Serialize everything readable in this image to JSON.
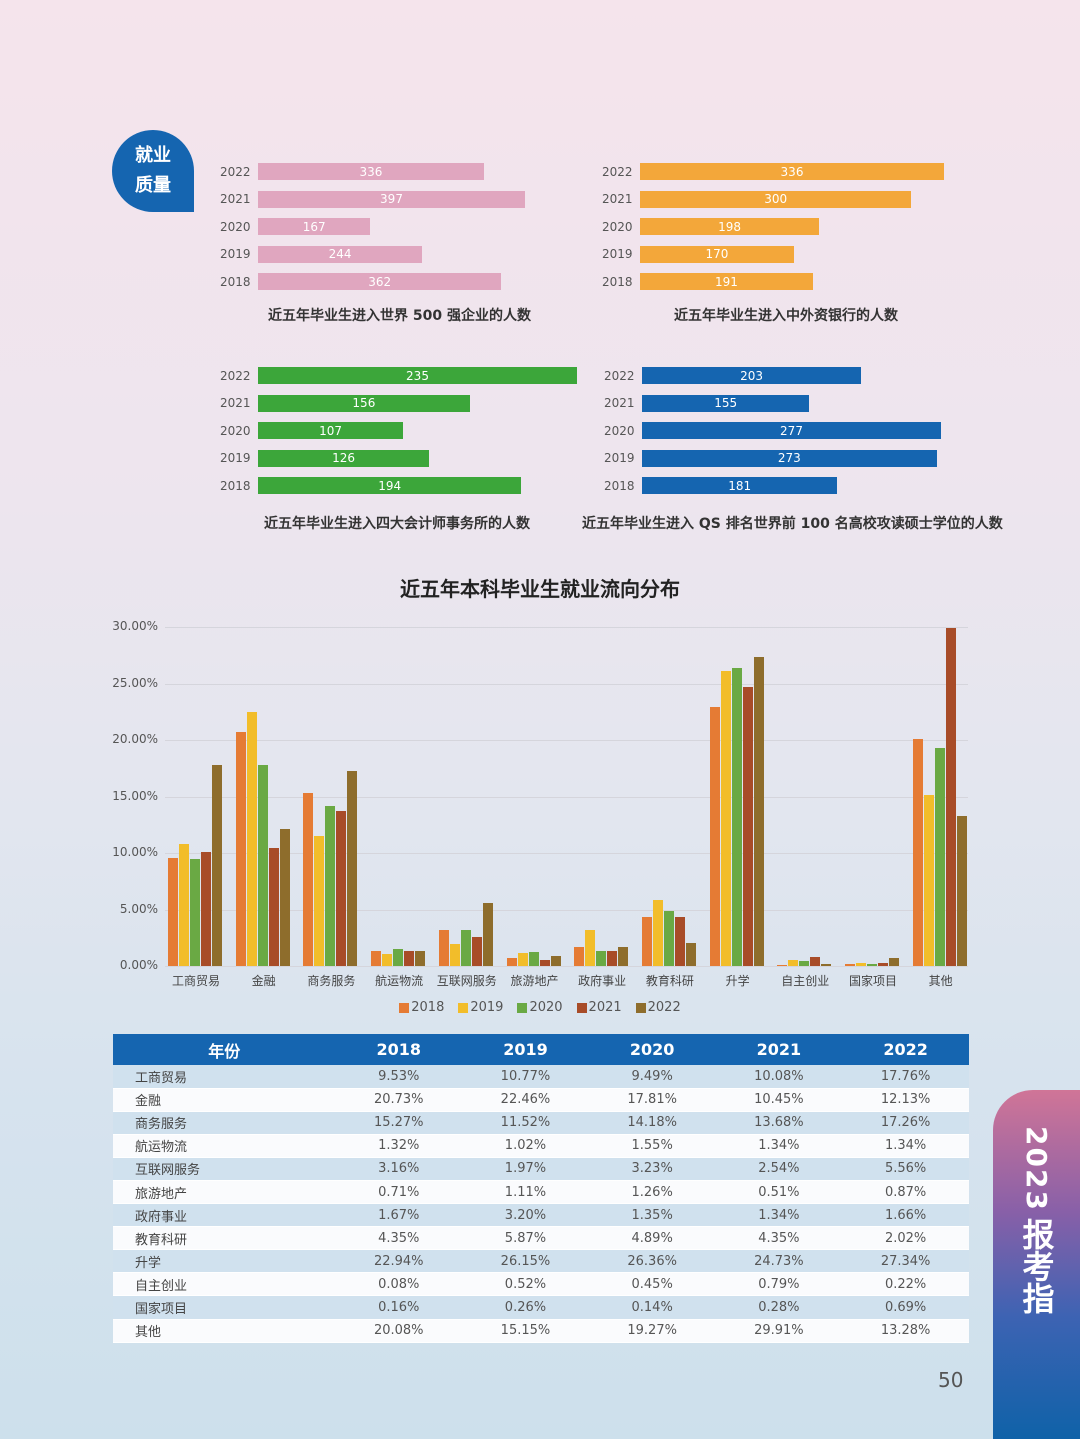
{
  "section_badge": {
    "line1": "就业",
    "line2": "质量"
  },
  "chart_data": [
    {
      "type": "bar",
      "orientation": "horizontal",
      "title": "近五年毕业生进入世界 500 强企业的人数",
      "categories": [
        "2022",
        "2021",
        "2020",
        "2019",
        "2018"
      ],
      "values": [
        336,
        397,
        167,
        244,
        362
      ],
      "color": "#e0a6bf"
    },
    {
      "type": "bar",
      "orientation": "horizontal",
      "title": "近五年毕业生进入中外资银行的人数",
      "categories": [
        "2022",
        "2021",
        "2020",
        "2019",
        "2018"
      ],
      "values": [
        336,
        300,
        198,
        170,
        191
      ],
      "color": "#f3a73a"
    },
    {
      "type": "bar",
      "orientation": "horizontal",
      "title": "近五年毕业生进入四大会计师事务所的人数",
      "categories": [
        "2022",
        "2021",
        "2020",
        "2019",
        "2018"
      ],
      "values": [
        235,
        156,
        107,
        126,
        194
      ],
      "color": "#3ca63a"
    },
    {
      "type": "bar",
      "orientation": "horizontal",
      "title": "近五年毕业生进入 QS 排名世界前 100 名高校攻读硕士学位的人数",
      "categories": [
        "2022",
        "2021",
        "2020",
        "2019",
        "2018"
      ],
      "values": [
        203,
        155,
        277,
        273,
        181
      ],
      "color": "#1565b0"
    },
    {
      "type": "bar",
      "title": "近五年本科毕业生就业流向分布",
      "xlabel": "",
      "ylabel": "",
      "ylim": [
        0,
        30
      ],
      "yticks": [
        "0.00%",
        "5.00%",
        "10.00%",
        "15.00%",
        "20.00%",
        "25.00%",
        "30.00%"
      ],
      "grid": true,
      "legend_position": "bottom",
      "categories": [
        "工商贸易",
        "金融",
        "商务服务",
        "航运物流",
        "互联网服务",
        "旅游地产",
        "政府事业",
        "教育科研",
        "升学",
        "自主创业",
        "国家项目",
        "其他"
      ],
      "series": [
        {
          "name": "2018",
          "color": "#e57b34",
          "values": [
            9.53,
            20.73,
            15.27,
            1.32,
            3.16,
            0.71,
            1.67,
            4.35,
            22.94,
            0.08,
            0.16,
            20.08
          ]
        },
        {
          "name": "2019",
          "color": "#f2bd2a",
          "values": [
            10.77,
            22.46,
            11.52,
            1.02,
            1.97,
            1.11,
            3.2,
            5.87,
            26.15,
            0.52,
            0.26,
            15.15
          ]
        },
        {
          "name": "2020",
          "color": "#6aa944",
          "values": [
            9.49,
            17.81,
            14.18,
            1.55,
            3.23,
            1.26,
            1.35,
            4.89,
            26.36,
            0.45,
            0.14,
            19.27
          ]
        },
        {
          "name": "2021",
          "color": "#a84c28",
          "values": [
            10.08,
            10.45,
            13.68,
            1.34,
            2.54,
            0.51,
            1.34,
            4.35,
            24.73,
            0.79,
            0.28,
            29.91
          ]
        },
        {
          "name": "2022",
          "color": "#8e6d2c",
          "values": [
            17.76,
            12.13,
            17.26,
            1.34,
            5.56,
            0.87,
            1.66,
            2.02,
            27.34,
            0.22,
            0.69,
            13.28
          ]
        }
      ]
    }
  ],
  "table": {
    "headers": [
      "年份",
      "2018",
      "2019",
      "2020",
      "2021",
      "2022"
    ],
    "rows": [
      [
        "工商贸易",
        "9.53%",
        "10.77%",
        "9.49%",
        "10.08%",
        "17.76%"
      ],
      [
        "金融",
        "20.73%",
        "22.46%",
        "17.81%",
        "10.45%",
        "12.13%"
      ],
      [
        "商务服务",
        "15.27%",
        "11.52%",
        "14.18%",
        "13.68%",
        "17.26%"
      ],
      [
        "航运物流",
        "1.32%",
        "1.02%",
        "1.55%",
        "1.34%",
        "1.34%"
      ],
      [
        "互联网服务",
        "3.16%",
        "1.97%",
        "3.23%",
        "2.54%",
        "5.56%"
      ],
      [
        "旅游地产",
        "0.71%",
        "1.11%",
        "1.26%",
        "0.51%",
        "0.87%"
      ],
      [
        "政府事业",
        "1.67%",
        "3.20%",
        "1.35%",
        "1.34%",
        "1.66%"
      ],
      [
        "教育科研",
        "4.35%",
        "5.87%",
        "4.89%",
        "4.35%",
        "2.02%"
      ],
      [
        "升学",
        "22.94%",
        "26.15%",
        "26.36%",
        "24.73%",
        "27.34%"
      ],
      [
        "自主创业",
        "0.08%",
        "0.52%",
        "0.45%",
        "0.79%",
        "0.22%"
      ],
      [
        "国家项目",
        "0.16%",
        "0.26%",
        "0.14%",
        "0.28%",
        "0.69%"
      ],
      [
        "其他",
        "20.08%",
        "15.15%",
        "19.27%",
        "29.91%",
        "13.28%"
      ]
    ]
  },
  "side_tab": {
    "year": "2023",
    "text": "报考指"
  },
  "page_number": "50"
}
